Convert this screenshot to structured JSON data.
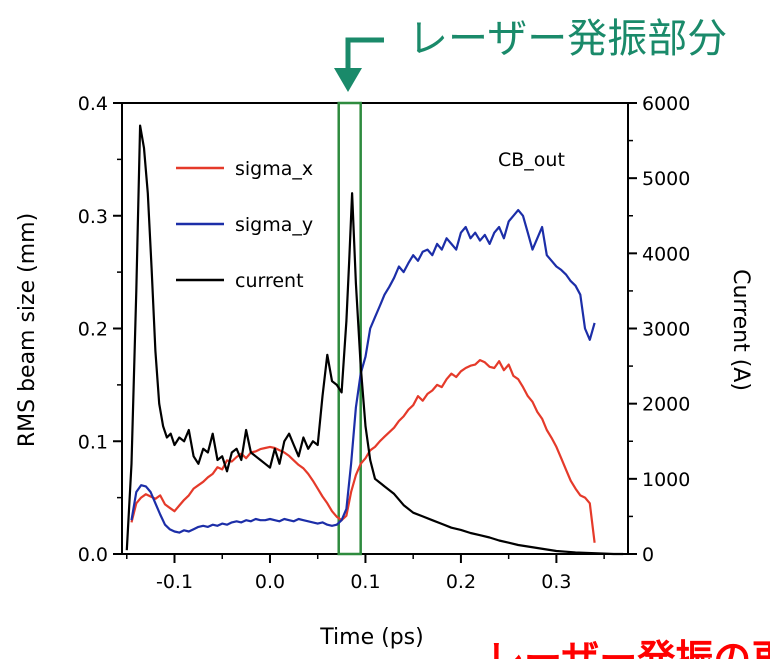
{
  "colors": {
    "sigma_x": "#e53a2a",
    "sigma_y": "#1c2ea8",
    "current": "#000000",
    "highlight": "#2e8b3e",
    "arrow": "#1a8a6a",
    "annotation_bottom": "#ff0000"
  },
  "chart_data": {
    "type": "line",
    "title": "",
    "xlabel": "Time (ps)",
    "ylabel": "RMS beam size (mm)",
    "y2label": "Current (A)",
    "xlim": [
      -0.155,
      0.375
    ],
    "ylim": [
      0,
      0.4
    ],
    "y2lim": [
      0,
      6000
    ],
    "x_ticks": [
      -0.1,
      0.0,
      0.1,
      0.2,
      0.3
    ],
    "x_tick_labels": [
      "-0.1",
      "0.0",
      "0.1",
      "0.2",
      "0.3"
    ],
    "y_ticks": [
      0.0,
      0.1,
      0.2,
      0.3,
      0.4
    ],
    "y_tick_labels": [
      "0.0",
      "0.1",
      "0.2",
      "0.3",
      "0.4"
    ],
    "y2_ticks": [
      0,
      1000,
      2000,
      3000,
      4000,
      5000,
      6000
    ],
    "y2_tick_labels": [
      "0",
      "1000",
      "2000",
      "3000",
      "4000",
      "5000",
      "6000"
    ],
    "annotation_label": "CB_out",
    "legend_position": "top-left",
    "highlight_band": [
      0.072,
      0.095
    ],
    "series": [
      {
        "name": "sigma_x",
        "axis": "left",
        "x": [
          -0.145,
          -0.14,
          -0.135,
          -0.13,
          -0.125,
          -0.12,
          -0.115,
          -0.11,
          -0.105,
          -0.1,
          -0.095,
          -0.09,
          -0.085,
          -0.08,
          -0.075,
          -0.07,
          -0.065,
          -0.06,
          -0.055,
          -0.05,
          -0.045,
          -0.04,
          -0.035,
          -0.03,
          -0.025,
          -0.02,
          -0.015,
          -0.01,
          -0.005,
          0.0,
          0.005,
          0.01,
          0.015,
          0.02,
          0.025,
          0.03,
          0.035,
          0.04,
          0.045,
          0.05,
          0.055,
          0.06,
          0.065,
          0.07,
          0.075,
          0.08,
          0.085,
          0.09,
          0.095,
          0.1,
          0.105,
          0.11,
          0.115,
          0.12,
          0.125,
          0.13,
          0.135,
          0.14,
          0.145,
          0.15,
          0.155,
          0.16,
          0.165,
          0.17,
          0.175,
          0.18,
          0.185,
          0.19,
          0.195,
          0.2,
          0.205,
          0.21,
          0.215,
          0.22,
          0.225,
          0.23,
          0.235,
          0.24,
          0.245,
          0.25,
          0.255,
          0.26,
          0.265,
          0.27,
          0.275,
          0.28,
          0.285,
          0.29,
          0.295,
          0.3,
          0.305,
          0.31,
          0.315,
          0.32,
          0.325,
          0.33,
          0.335,
          0.34
        ],
        "y": [
          0.028,
          0.045,
          0.05,
          0.053,
          0.051,
          0.049,
          0.052,
          0.044,
          0.041,
          0.038,
          0.043,
          0.048,
          0.052,
          0.058,
          0.061,
          0.064,
          0.068,
          0.071,
          0.077,
          0.075,
          0.083,
          0.082,
          0.086,
          0.089,
          0.085,
          0.09,
          0.091,
          0.093,
          0.094,
          0.095,
          0.094,
          0.092,
          0.09,
          0.087,
          0.083,
          0.079,
          0.076,
          0.071,
          0.065,
          0.058,
          0.051,
          0.045,
          0.038,
          0.033,
          0.03,
          0.034,
          0.055,
          0.07,
          0.08,
          0.085,
          0.092,
          0.095,
          0.1,
          0.104,
          0.108,
          0.112,
          0.118,
          0.122,
          0.128,
          0.132,
          0.14,
          0.136,
          0.142,
          0.145,
          0.15,
          0.148,
          0.155,
          0.16,
          0.157,
          0.162,
          0.165,
          0.167,
          0.168,
          0.172,
          0.17,
          0.166,
          0.165,
          0.171,
          0.163,
          0.168,
          0.158,
          0.155,
          0.148,
          0.14,
          0.135,
          0.126,
          0.12,
          0.11,
          0.103,
          0.095,
          0.085,
          0.075,
          0.065,
          0.058,
          0.052,
          0.05,
          0.045,
          0.01
        ]
      },
      {
        "name": "sigma_y",
        "axis": "left",
        "x": [
          -0.145,
          -0.14,
          -0.135,
          -0.13,
          -0.125,
          -0.12,
          -0.115,
          -0.11,
          -0.105,
          -0.1,
          -0.095,
          -0.09,
          -0.085,
          -0.08,
          -0.075,
          -0.07,
          -0.065,
          -0.06,
          -0.055,
          -0.05,
          -0.045,
          -0.04,
          -0.035,
          -0.03,
          -0.025,
          -0.02,
          -0.015,
          -0.01,
          -0.005,
          0.0,
          0.005,
          0.01,
          0.015,
          0.02,
          0.025,
          0.03,
          0.035,
          0.04,
          0.045,
          0.05,
          0.055,
          0.06,
          0.065,
          0.07,
          0.075,
          0.08,
          0.085,
          0.09,
          0.095,
          0.1,
          0.105,
          0.11,
          0.115,
          0.12,
          0.125,
          0.13,
          0.135,
          0.14,
          0.145,
          0.15,
          0.155,
          0.16,
          0.165,
          0.17,
          0.175,
          0.18,
          0.185,
          0.19,
          0.195,
          0.2,
          0.205,
          0.21,
          0.215,
          0.22,
          0.225,
          0.23,
          0.235,
          0.24,
          0.245,
          0.25,
          0.255,
          0.26,
          0.265,
          0.27,
          0.275,
          0.28,
          0.285,
          0.29,
          0.295,
          0.3,
          0.305,
          0.31,
          0.315,
          0.32,
          0.325,
          0.33,
          0.335,
          0.34
        ],
        "y": [
          0.03,
          0.055,
          0.061,
          0.06,
          0.055,
          0.045,
          0.035,
          0.026,
          0.022,
          0.02,
          0.019,
          0.021,
          0.02,
          0.022,
          0.024,
          0.025,
          0.024,
          0.026,
          0.025,
          0.027,
          0.026,
          0.028,
          0.029,
          0.028,
          0.03,
          0.029,
          0.031,
          0.03,
          0.03,
          0.031,
          0.03,
          0.029,
          0.031,
          0.03,
          0.029,
          0.031,
          0.03,
          0.029,
          0.028,
          0.027,
          0.028,
          0.026,
          0.025,
          0.026,
          0.03,
          0.04,
          0.08,
          0.13,
          0.16,
          0.175,
          0.2,
          0.21,
          0.22,
          0.23,
          0.237,
          0.245,
          0.255,
          0.25,
          0.258,
          0.265,
          0.26,
          0.268,
          0.27,
          0.265,
          0.275,
          0.27,
          0.28,
          0.275,
          0.27,
          0.285,
          0.29,
          0.28,
          0.285,
          0.278,
          0.283,
          0.275,
          0.285,
          0.29,
          0.28,
          0.295,
          0.3,
          0.305,
          0.3,
          0.285,
          0.27,
          0.28,
          0.29,
          0.265,
          0.26,
          0.255,
          0.252,
          0.248,
          0.242,
          0.238,
          0.23,
          0.2,
          0.19,
          0.205
        ]
      },
      {
        "name": "current",
        "axis": "right",
        "x": [
          -0.15,
          -0.145,
          -0.14,
          -0.136,
          -0.132,
          -0.128,
          -0.124,
          -0.12,
          -0.116,
          -0.112,
          -0.108,
          -0.104,
          -0.1,
          -0.095,
          -0.09,
          -0.085,
          -0.08,
          -0.075,
          -0.07,
          -0.065,
          -0.06,
          -0.055,
          -0.05,
          -0.045,
          -0.04,
          -0.035,
          -0.03,
          -0.025,
          -0.02,
          -0.015,
          -0.01,
          -0.005,
          0.0,
          0.005,
          0.01,
          0.015,
          0.02,
          0.025,
          0.03,
          0.035,
          0.04,
          0.045,
          0.05,
          0.055,
          0.06,
          0.065,
          0.07,
          0.075,
          0.08,
          0.083,
          0.086,
          0.09,
          0.095,
          0.1,
          0.105,
          0.11,
          0.115,
          0.12,
          0.125,
          0.13,
          0.14,
          0.15,
          0.16,
          0.17,
          0.18,
          0.19,
          0.2,
          0.21,
          0.22,
          0.23,
          0.24,
          0.25,
          0.26,
          0.27,
          0.28,
          0.29,
          0.3,
          0.31,
          0.32,
          0.33,
          0.34,
          0.35,
          0.36,
          0.37
        ],
        "y": [
          50,
          1200,
          3500,
          5700,
          5400,
          4800,
          3800,
          2700,
          2000,
          1700,
          1550,
          1600,
          1450,
          1550,
          1500,
          1650,
          1300,
          1200,
          1400,
          1350,
          1600,
          1250,
          1300,
          1100,
          1350,
          1400,
          1250,
          1650,
          1350,
          1300,
          1250,
          1200,
          1150,
          1400,
          1200,
          1500,
          1600,
          1450,
          1300,
          1550,
          1400,
          1500,
          1450,
          2100,
          2650,
          2300,
          2250,
          2150,
          3100,
          3900,
          4800,
          3600,
          2500,
          1700,
          1250,
          1000,
          950,
          900,
          850,
          800,
          650,
          550,
          500,
          450,
          400,
          350,
          320,
          280,
          250,
          220,
          180,
          150,
          120,
          100,
          80,
          60,
          40,
          30,
          20,
          15,
          10,
          5,
          0,
          0
        ]
      }
    ]
  },
  "annotations": {
    "top_text": "レーザー発振部分",
    "bottom_text": "レーザー発振の再"
  }
}
